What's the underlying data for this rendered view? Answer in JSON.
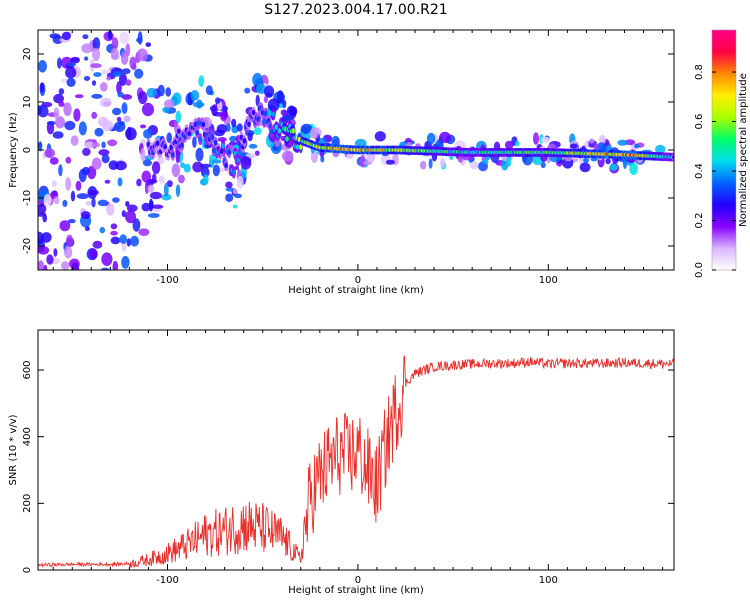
{
  "figure": {
    "title": "S127.2023.004.17.00.R21"
  },
  "chart_data": [
    {
      "type": "heatmap",
      "xlabel": "Height of straight line (km)",
      "ylabel": "Frequency (Hz)",
      "xlim": [
        -168,
        166
      ],
      "ylim": [
        -25,
        25
      ],
      "x_ticks": [
        -100,
        0,
        100
      ],
      "y_ticks": [
        -20,
        -10,
        0,
        10,
        20
      ],
      "grid": false,
      "colorbar": {
        "label": "Normalized spectral amplitude",
        "range": [
          0.0,
          0.97
        ],
        "ticks": [
          "0.0",
          "0.2",
          "0.4",
          "0.6",
          "0.8"
        ],
        "colors": [
          "#ffffff",
          "#d9b3ff",
          "#8800ff",
          "#2200ff",
          "#0066ff",
          "#00ddee",
          "#00ff66",
          "#aaff00",
          "#ffee00",
          "#ff8800",
          "#ff0044",
          "#ff0088"
        ]
      },
      "ridge": [
        {
          "x": -100,
          "freq": 0,
          "amp": 0.3
        },
        {
          "x": -85,
          "freq": 5,
          "amp": 0.35
        },
        {
          "x": -65,
          "freq": -3,
          "amp": 0.4
        },
        {
          "x": -55,
          "freq": 8,
          "amp": 0.3
        },
        {
          "x": -30,
          "freq": 2,
          "amp": 0.65
        },
        {
          "x": -20,
          "freq": 0.5,
          "amp": 0.75
        },
        {
          "x": 0,
          "freq": 0,
          "amp": 0.85
        },
        {
          "x": 20,
          "freq": 0,
          "amp": 0.7
        },
        {
          "x": 60,
          "freq": -0.5,
          "amp": 0.5
        },
        {
          "x": 100,
          "freq": -0.5,
          "amp": 0.6
        },
        {
          "x": 140,
          "freq": -1,
          "amp": 0.9
        },
        {
          "x": 166,
          "freq": -1.5,
          "amp": 0.4
        }
      ]
    },
    {
      "type": "line",
      "xlabel": "Height of straight line (km)",
      "ylabel": "SNR (10 * v/v)",
      "xlim": [
        -168,
        166
      ],
      "ylim": [
        0,
        720
      ],
      "x_ticks": [
        -100,
        0,
        100
      ],
      "y_ticks": [
        0,
        200,
        400,
        600
      ],
      "grid": false,
      "color": "#e8302a",
      "series": [
        {
          "x": [
            -168,
            -150,
            -130,
            -120,
            -110,
            -100,
            -90,
            -80,
            -70,
            -60,
            -50,
            -40,
            -30,
            -25,
            -20,
            -15,
            -10,
            -5,
            0,
            5,
            10,
            15,
            20,
            25,
            30,
            40,
            50,
            60,
            70,
            80,
            90,
            100,
            110,
            120,
            130,
            140,
            150,
            166
          ],
          "y": [
            10,
            12,
            12,
            14,
            25,
            40,
            60,
            85,
            95,
            110,
            100,
            80,
            25,
            220,
            280,
            320,
            350,
            340,
            360,
            300,
            250,
            380,
            480,
            560,
            590,
            610,
            615,
            618,
            620,
            620,
            625,
            618,
            620,
            620,
            620,
            622,
            620,
            618
          ]
        }
      ]
    }
  ]
}
